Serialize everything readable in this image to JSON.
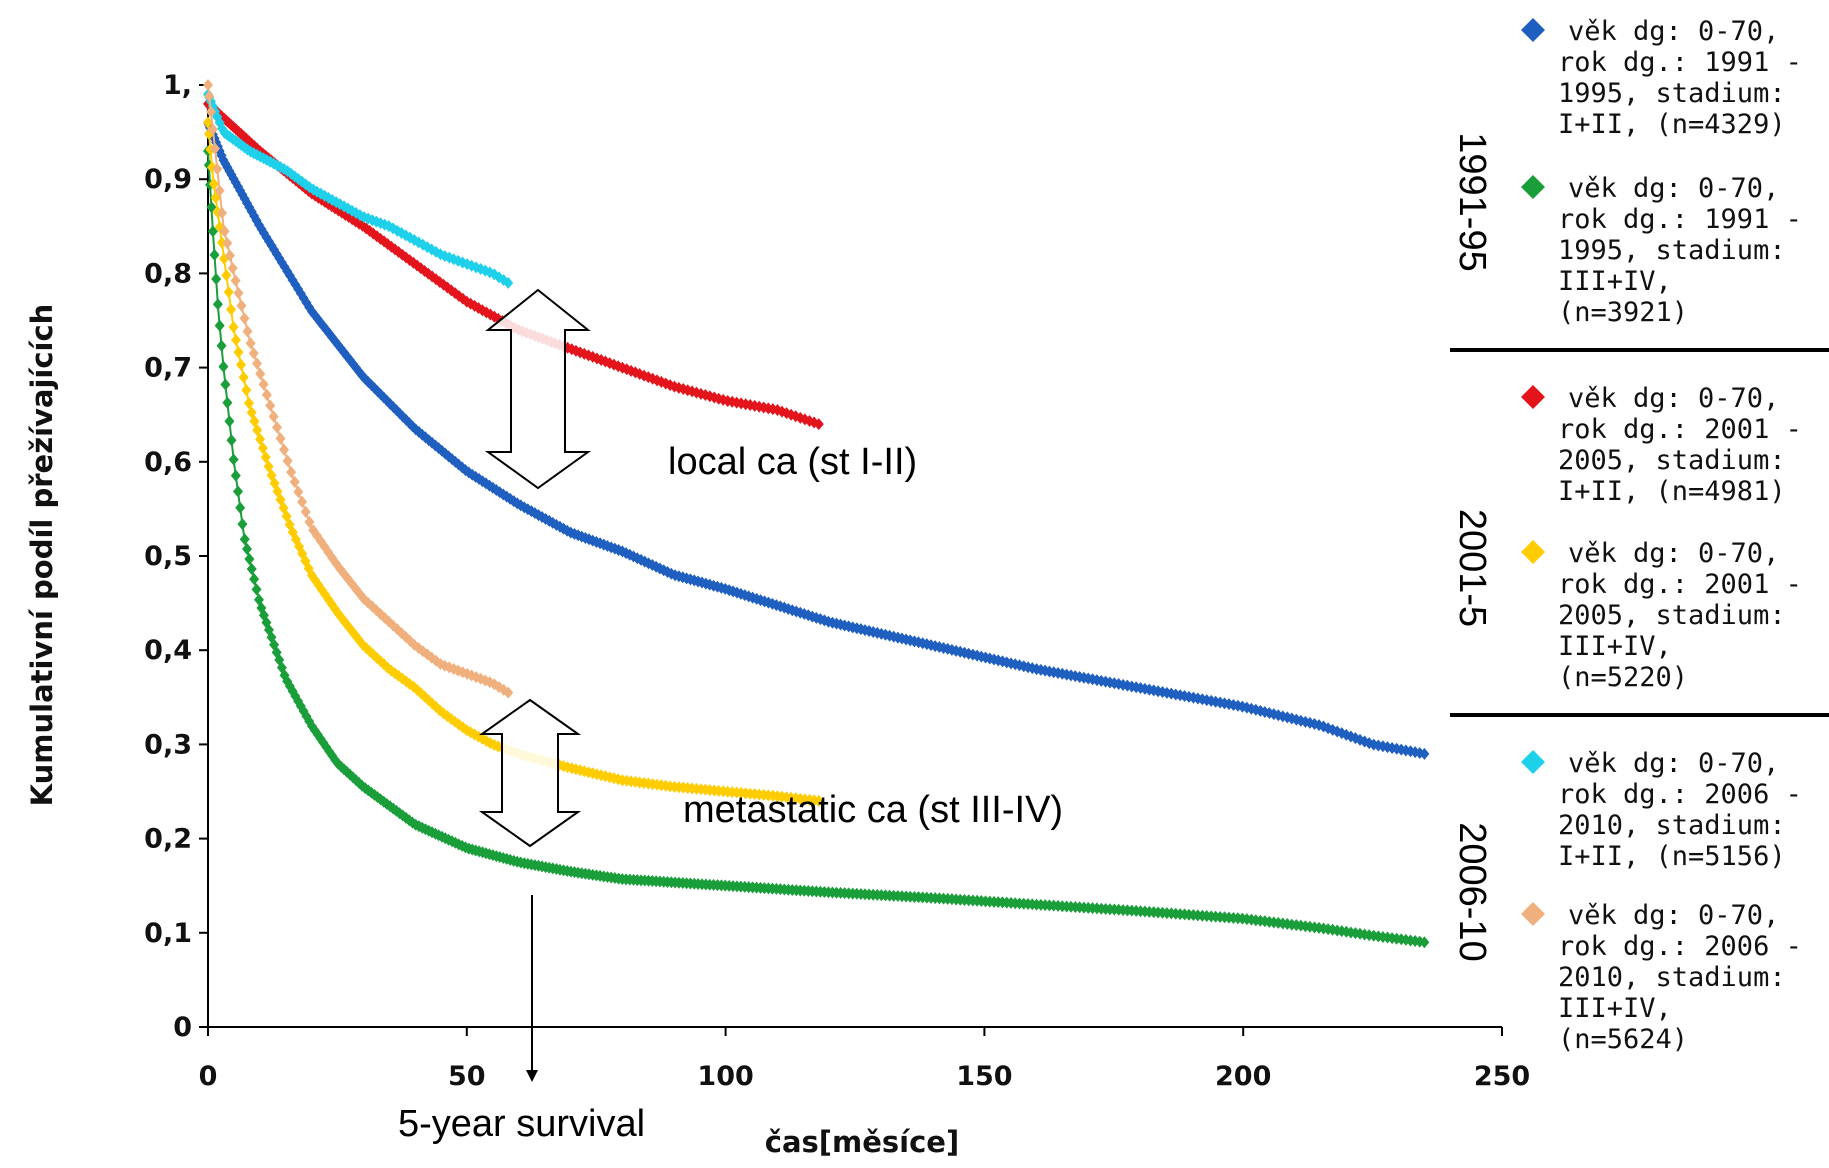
{
  "chart_data": {
    "type": "line",
    "xlabel": "čas[měsíce]",
    "ylabel": "Kumulativní podíl přežívajících",
    "xlim": [
      0,
      250
    ],
    "ylim": [
      0,
      1
    ],
    "x_ticks": [
      "0",
      "50",
      "100",
      "150",
      "200",
      "250"
    ],
    "y_ticks": [
      "0",
      "0,1",
      "0,2",
      "0,3",
      "0,4",
      "0,5",
      "0,6",
      "0,7",
      "0,8",
      "0,9",
      "1,"
    ],
    "grid": false,
    "legend_position": "right",
    "series": [
      {
        "name": "věk dg: 0-70, rok dg.: 1991 - 1995, stadium: I+II, (n=4329)",
        "legend_lines": [
          "věk dg: 0-70,",
          "rok dg.: 1991 -",
          "1995, stadium:",
          "I+II, (n=4329)"
        ],
        "color": "#1f5fc0",
        "x": [
          0,
          3,
          10,
          20,
          30,
          40,
          50,
          60,
          70,
          80,
          90,
          100,
          120,
          140,
          160,
          180,
          200,
          215,
          225,
          235
        ],
        "y": [
          0.96,
          0.92,
          0.85,
          0.76,
          0.69,
          0.635,
          0.59,
          0.555,
          0.525,
          0.505,
          0.48,
          0.465,
          0.43,
          0.405,
          0.38,
          0.36,
          0.34,
          0.32,
          0.3,
          0.29
        ]
      },
      {
        "name": "věk dg: 0-70, rok dg.: 1991 - 1995, stadium: III+IV, (n=3921)",
        "legend_lines": [
          "věk dg: 0-70,",
          "rok dg.: 1991 -",
          "1995, stadium:",
          "III+IV,",
          "(n=3921)"
        ],
        "color": "#1a9e3a",
        "x": [
          0,
          1,
          2,
          3,
          5,
          7,
          10,
          15,
          20,
          25,
          30,
          40,
          50,
          60,
          70,
          80,
          100,
          120,
          140,
          160,
          180,
          200,
          215,
          225,
          235
        ],
        "y": [
          0.93,
          0.84,
          0.76,
          0.7,
          0.6,
          0.52,
          0.45,
          0.37,
          0.32,
          0.28,
          0.255,
          0.215,
          0.19,
          0.175,
          0.165,
          0.157,
          0.15,
          0.143,
          0.137,
          0.13,
          0.123,
          0.115,
          0.105,
          0.097,
          0.09
        ]
      },
      {
        "name": "věk dg: 0-70, rok dg.: 2001 - 2005, stadium: I+II, (n=4981)",
        "legend_lines": [
          "věk dg: 0-70,",
          "rok dg.: 2001 -",
          "2005, stadium:",
          "I+II, (n=4981)"
        ],
        "color": "#e3141b",
        "x": [
          0,
          5,
          10,
          20,
          30,
          40,
          50,
          60,
          70,
          80,
          90,
          100,
          110,
          118
        ],
        "y": [
          0.98,
          0.955,
          0.93,
          0.885,
          0.85,
          0.81,
          0.77,
          0.74,
          0.72,
          0.7,
          0.68,
          0.665,
          0.655,
          0.64
        ]
      },
      {
        "name": "věk dg: 0-70, rok dg.: 2001 - 2005, stadium: III+IV, (n=5220)",
        "legend_lines": [
          "věk dg: 0-70,",
          "rok dg.: 2001 -",
          "2005, stadium:",
          "III+IV,",
          "(n=5220)"
        ],
        "color": "#ffcc00",
        "x": [
          0,
          1,
          3,
          5,
          8,
          12,
          16,
          20,
          25,
          30,
          35,
          40,
          45,
          50,
          55,
          60,
          70,
          80,
          90,
          100,
          110,
          118
        ],
        "y": [
          0.96,
          0.9,
          0.82,
          0.74,
          0.66,
          0.59,
          0.53,
          0.48,
          0.44,
          0.405,
          0.38,
          0.36,
          0.335,
          0.315,
          0.3,
          0.29,
          0.275,
          0.262,
          0.255,
          0.25,
          0.245,
          0.24
        ]
      },
      {
        "name": "věk dg: 0-70, rok dg.: 2006 - 2010, stadium: I+II, (n=5156)",
        "legend_lines": [
          "věk dg: 0-70,",
          "rok dg.: 2006 -",
          "2010, stadium:",
          "I+II, (n=5156)"
        ],
        "color": "#1ed0ea",
        "x": [
          0,
          3,
          8,
          15,
          20,
          25,
          30,
          35,
          40,
          45,
          50,
          55,
          58
        ],
        "y": [
          0.99,
          0.95,
          0.93,
          0.91,
          0.89,
          0.875,
          0.86,
          0.85,
          0.835,
          0.82,
          0.81,
          0.8,
          0.79
        ]
      },
      {
        "name": "věk dg: 0-70, rok dg.: 2006 - 2010, stadium: III+IV, (n=5624)",
        "legend_lines": [
          "věk dg: 0-70,",
          "rok dg.: 2006 -",
          "2010, stadium:",
          "III+IV,",
          "(n=5624)"
        ],
        "color": "#f0b07e",
        "x": [
          0,
          1,
          2,
          3,
          5,
          8,
          12,
          16,
          20,
          25,
          30,
          35,
          40,
          45,
          50,
          55,
          58
        ],
        "y": [
          1.0,
          0.95,
          0.9,
          0.85,
          0.8,
          0.73,
          0.66,
          0.59,
          0.53,
          0.49,
          0.455,
          0.43,
          0.405,
          0.385,
          0.375,
          0.365,
          0.355
        ]
      }
    ],
    "period_labels": [
      "1991-95",
      "2001-5",
      "2006-10"
    ],
    "annotations": {
      "local": "local ca (st I-II)",
      "metastatic": "metastatic ca (st III-IV)",
      "five_year": "5-year survival"
    }
  }
}
